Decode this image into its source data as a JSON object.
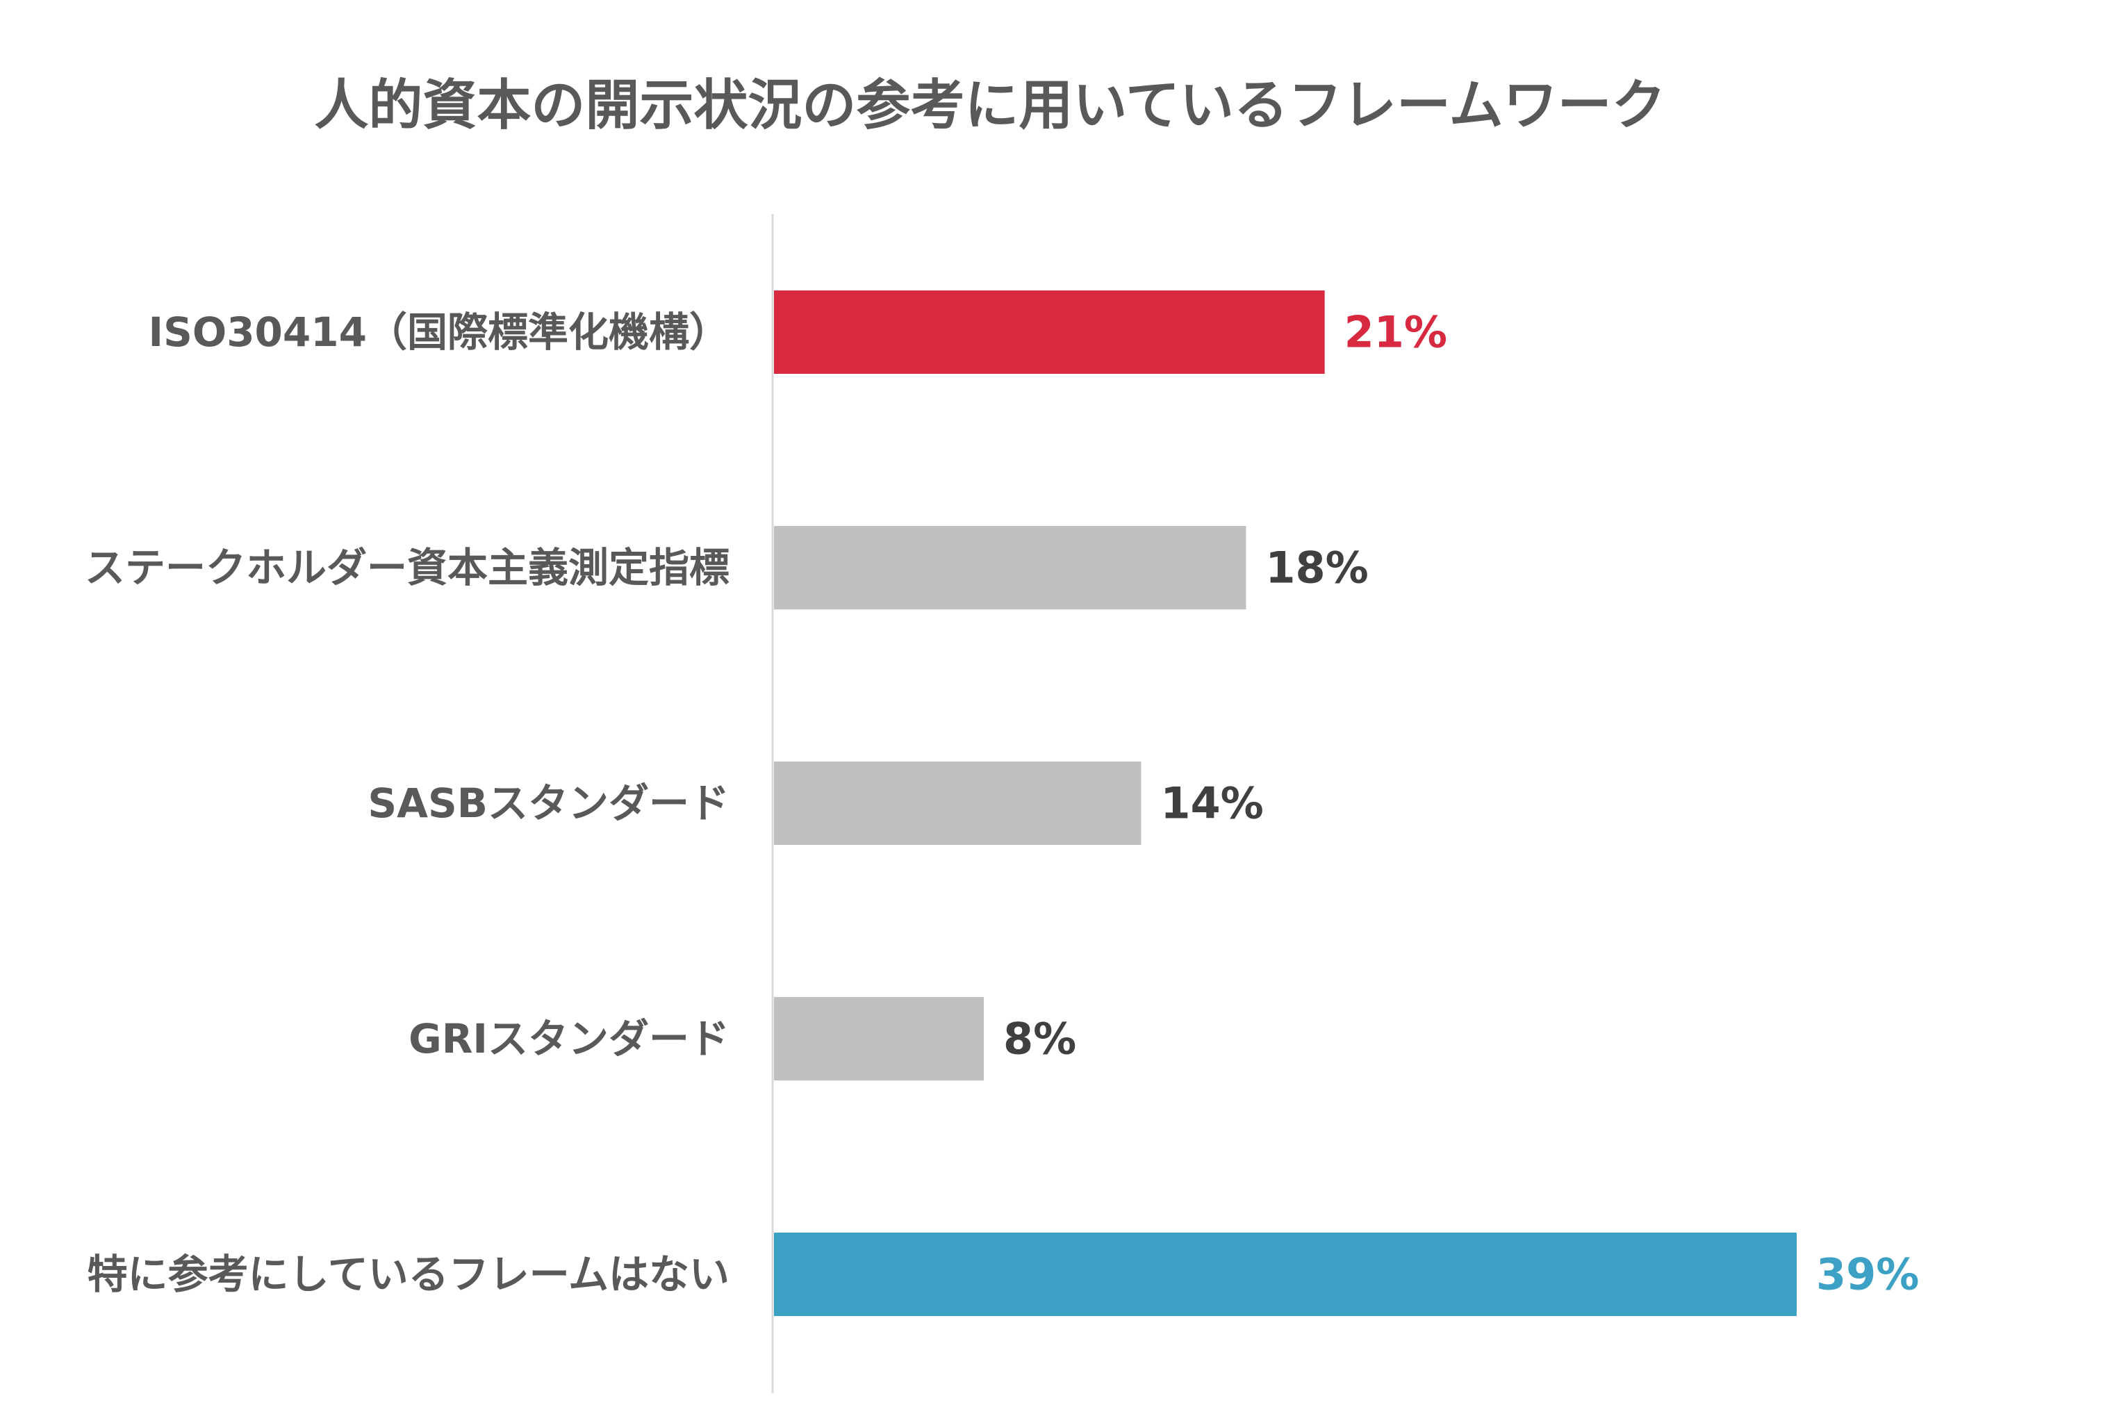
{
  "chart_data": {
    "type": "bar",
    "orientation": "horizontal",
    "title": "人的資本の開示状況の参考に用いているフレームワーク",
    "categories": [
      "ISO30414（国際標準化機構）",
      "ステークホルダー資本主義測定指標",
      "SASBスタンダード",
      "GRIスタンダード",
      "特に参考にしているフレームはない"
    ],
    "values": [
      21,
      18,
      14,
      8,
      39
    ],
    "value_labels": [
      "21%",
      "18%",
      "14%",
      "8%",
      "39%"
    ],
    "unit": "%",
    "colors": [
      "#d72940",
      "#bfbfbf",
      "#bfbfbf",
      "#bfbfbf",
      "#3da1c6"
    ],
    "label_colors": [
      "#d72940",
      "#404040",
      "#404040",
      "#404040",
      "#3da1c6"
    ],
    "xlim": [
      0,
      39
    ],
    "grid": false,
    "legend": "none"
  }
}
